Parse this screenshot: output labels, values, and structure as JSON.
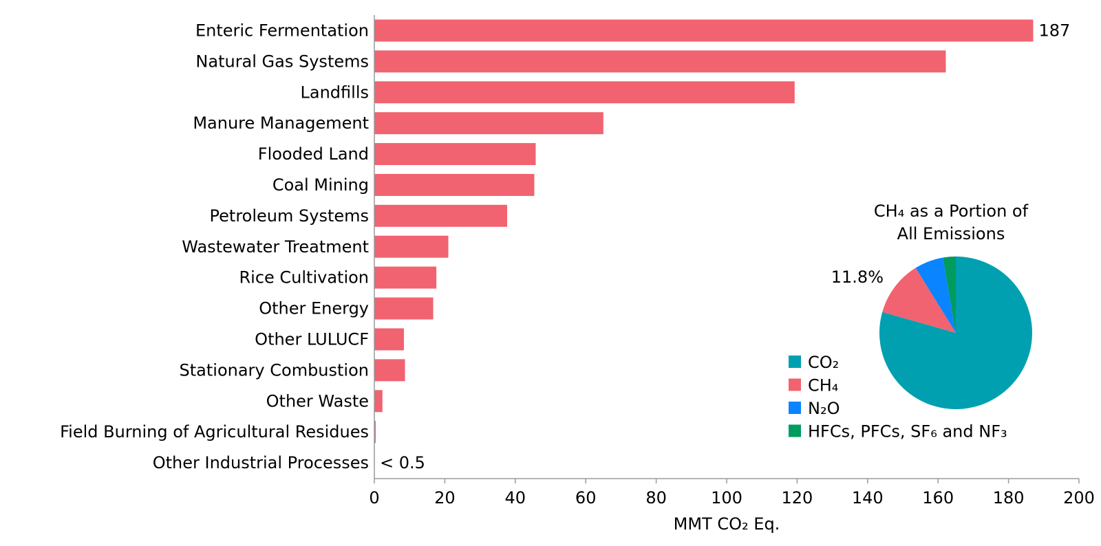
{
  "chart_data": [
    {
      "type": "bar",
      "orientation": "horizontal",
      "xlabel": "MMT CO₂ Eq.",
      "xlim": [
        0,
        200
      ],
      "xticks": [
        0,
        20,
        40,
        60,
        80,
        100,
        120,
        140,
        160,
        180,
        200
      ],
      "grid": false,
      "categories": [
        "Enteric Fermentation",
        "Natural Gas Systems",
        "Landfills",
        "Manure Management",
        "Flooded Land",
        "Coal Mining",
        "Petroleum Systems",
        "Wastewater Treatment",
        "Rice Cultivation",
        "Other Energy",
        "Other LULUCF",
        "Stationary Combustion",
        "Other Waste",
        "Field Burning of Agricultural Residues",
        "Other Industrial Processes"
      ],
      "values": [
        187,
        162.2,
        119.3,
        65,
        45.8,
        45.4,
        37.7,
        21,
        17.6,
        16.7,
        8.4,
        8.7,
        2.3,
        0.4,
        0
      ],
      "data_labels": [
        {
          "category": "Enteric Fermentation",
          "text": "187"
        },
        {
          "category": "Other Industrial Processes",
          "text": "< 0.5"
        }
      ],
      "bar_color": "#f16370"
    },
    {
      "type": "pie",
      "title_line1": "CH₄ as a Portion of",
      "title_line2": "All Emissions",
      "slices": [
        {
          "label": "CO₂",
          "value": 79.4,
          "color": "#00a0b0"
        },
        {
          "label": "CH₄",
          "value": 11.8,
          "color": "#f16370"
        },
        {
          "label": "N₂O",
          "value": 6.1,
          "color": "#0a84ff"
        },
        {
          "label": "HFCs, PFCs, SF₆ and NF₃",
          "value": 2.7,
          "color": "#009b5e"
        }
      ],
      "slice_label": "11.8%",
      "legend_position": "left"
    }
  ]
}
